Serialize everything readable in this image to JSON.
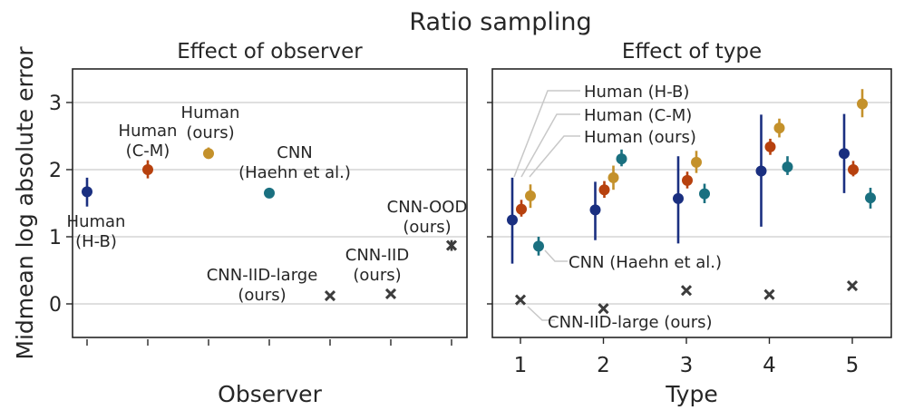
{
  "figure_title": "Ratio sampling",
  "ylabel": "Midmean log absolute error",
  "chart_data": [
    {
      "type": "scatter",
      "title": "Effect of observer",
      "xlabel": "Observer",
      "ylabel": "Midmean log absolute error",
      "ylim": [
        -0.5,
        3.5
      ],
      "yticks": [
        0,
        1,
        2,
        3
      ],
      "grid": "horizontal",
      "points": [
        {
          "observer": "Human (H-B)",
          "label_lines": [
            "Human",
            "(H-B)"
          ],
          "value": 1.67,
          "err": [
            1.45,
            1.88
          ],
          "marker": "dot",
          "color": "#1a2f80"
        },
        {
          "observer": "Human (C-M)",
          "label_lines": [
            "Human",
            "(C-M)"
          ],
          "value": 2.0,
          "err": [
            1.87,
            2.14
          ],
          "marker": "dot",
          "color": "#b7410e"
        },
        {
          "observer": "Human (ours)",
          "label_lines": [
            "Human",
            "(ours)"
          ],
          "value": 2.24,
          "err": [
            2.16,
            2.33
          ],
          "marker": "dot",
          "color": "#c4912b"
        },
        {
          "observer": "CNN (Haehn et al.)",
          "label_lines": [
            "CNN",
            "(Haehn et al.)"
          ],
          "value": 1.65,
          "err": [
            1.61,
            1.69
          ],
          "marker": "dot",
          "color": "#1a7080"
        },
        {
          "observer": "CNN-IID-large (ours)",
          "label_lines": [
            "CNN-IID-large",
            "(ours)"
          ],
          "value": 0.12,
          "err": [
            0.1,
            0.14
          ],
          "marker": "x",
          "color": "#3c3c3c"
        },
        {
          "observer": "CNN-IID (ours)",
          "label_lines": [
            "CNN-IID",
            "(ours)"
          ],
          "value": 0.15,
          "err": [
            0.13,
            0.17
          ],
          "marker": "x",
          "color": "#3c3c3c"
        },
        {
          "observer": "CNN-OOD (ours)",
          "label_lines": [
            "CNN-OOD",
            "(ours)"
          ],
          "value": 0.87,
          "err": [
            0.79,
            0.95
          ],
          "marker": "x",
          "color": "#3c3c3c"
        }
      ]
    },
    {
      "type": "scatter",
      "title": "Effect of type",
      "xlabel": "Type",
      "ylim": [
        -0.5,
        3.5
      ],
      "categories": [
        "1",
        "2",
        "3",
        "4",
        "5"
      ],
      "grid": "horizontal",
      "series": [
        {
          "name": "Human (H-B)",
          "color": "#1a2f80",
          "marker": "dot",
          "values": [
            1.25,
            1.4,
            1.57,
            1.98,
            2.24
          ],
          "err": [
            [
              0.6,
              1.88
            ],
            [
              0.95,
              1.82
            ],
            [
              0.9,
              2.2
            ],
            [
              1.15,
              2.82
            ],
            [
              1.65,
              2.83
            ]
          ]
        },
        {
          "name": "Human (C-M)",
          "color": "#b7410e",
          "marker": "dot",
          "values": [
            1.41,
            1.7,
            1.84,
            2.34,
            2.0
          ],
          "err": [
            [
              1.3,
              1.55
            ],
            [
              1.58,
              1.83
            ],
            [
              1.72,
              1.97
            ],
            [
              2.22,
              2.46
            ],
            [
              1.9,
              2.13
            ]
          ]
        },
        {
          "name": "Human (ours)",
          "color": "#c4912b",
          "marker": "dot",
          "values": [
            1.61,
            1.88,
            2.11,
            2.62,
            2.98
          ],
          "err": [
            [
              1.43,
              1.78
            ],
            [
              1.7,
              2.06
            ],
            [
              1.95,
              2.28
            ],
            [
              2.48,
              2.76
            ],
            [
              2.78,
              3.2
            ]
          ]
        },
        {
          "name": "CNN (Haehn et al.)",
          "color": "#1a7080",
          "marker": "dot",
          "values": [
            0.86,
            2.16,
            1.64,
            2.04,
            1.58
          ],
          "err": [
            [
              0.72,
              1.0
            ],
            [
              2.05,
              2.3
            ],
            [
              1.5,
              1.79
            ],
            [
              1.92,
              2.2
            ],
            [
              1.42,
              1.73
            ]
          ]
        },
        {
          "name": "CNN-IID-large (ours)",
          "color": "#3c3c3c",
          "marker": "x",
          "values": [
            0.06,
            -0.07,
            0.2,
            0.14,
            0.27
          ],
          "err": [
            [
              0.04,
              0.08
            ],
            [
              -0.09,
              -0.05
            ],
            [
              0.18,
              0.22
            ],
            [
              0.12,
              0.16
            ],
            [
              0.25,
              0.29
            ]
          ]
        }
      ],
      "annotations": [
        "Human (H-B)",
        "Human (C-M)",
        "Human (ours)",
        "CNN (Haehn et al.)",
        "CNN-IID-large (ours)"
      ]
    }
  ]
}
